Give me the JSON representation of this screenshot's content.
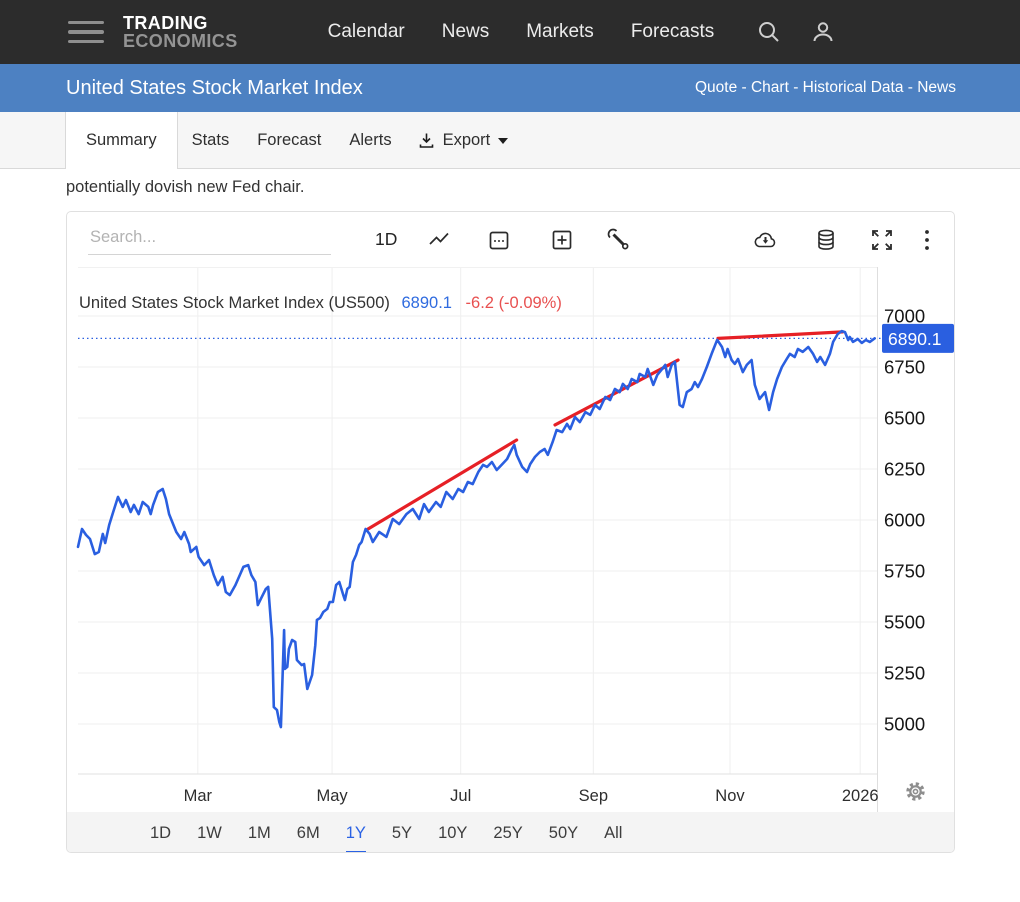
{
  "topnav": {
    "brand_line1": "TRADING",
    "brand_line2": "ECONOMICS",
    "items": [
      "Calendar",
      "News",
      "Markets",
      "Forecasts"
    ]
  },
  "subheader": {
    "title": "United States Stock Market Index",
    "links": [
      "Quote",
      "Chart",
      "Historical Data",
      "News"
    ],
    "separator": " - "
  },
  "tabs": {
    "items": [
      {
        "label": "Summary",
        "active": true
      },
      {
        "label": "Stats",
        "active": false
      },
      {
        "label": "Forecast",
        "active": false
      },
      {
        "label": "Alerts",
        "active": false
      }
    ],
    "export_label": "Export"
  },
  "snippet": "potentially dovish new Fed chair.",
  "chart_toolbar": {
    "search_placeholder": "Search...",
    "interval_label": "1D"
  },
  "icons": {
    "topnav": [
      "menu-icon",
      "search-icon",
      "user-icon"
    ],
    "tabbar": [
      "download-icon",
      "caret-down-icon"
    ],
    "toolbar": [
      "line-style-icon",
      "calendar-icon",
      "add-compare-icon",
      "tools-icon",
      "cloud-download-icon",
      "database-icon",
      "fullscreen-icon",
      "kebab-menu-icon"
    ],
    "axis": [
      "settings-gear-icon"
    ]
  },
  "colors": {
    "topnav_bg": "#2c2c2c",
    "subheader_bg": "#4d81c2",
    "line_blue": "#2a5fe0",
    "badge_blue": "#2a5fe0",
    "annotation_red": "#e62026",
    "price_blue": "#2f6bdf",
    "change_red": "#e85050",
    "grid": "#efefef",
    "active_range": "#2a62e4"
  },
  "chart_data": {
    "type": "line",
    "title": "United States Stock Market Index (US500)",
    "last_price": "6890.1",
    "change": "-6.2 (-0.09%)",
    "current_line": 6890.1,
    "ylim": [
      4755,
      7240
    ],
    "yticks": [
      7000,
      6750,
      6500,
      6250,
      6000,
      5750,
      5500,
      5250,
      5000
    ],
    "xticks": [
      {
        "pos": 0.15,
        "label": "Mar"
      },
      {
        "pos": 0.318,
        "label": "May"
      },
      {
        "pos": 0.479,
        "label": "Jul"
      },
      {
        "pos": 0.645,
        "label": "Sep"
      },
      {
        "pos": 0.816,
        "label": "Nov"
      },
      {
        "pos": 0.979,
        "label": "2026"
      }
    ],
    "grid": true,
    "legend": null,
    "series": [
      {
        "name": "US500",
        "color": "#2a5fe0",
        "points": [
          [
            0.0,
            5868
          ],
          [
            0.005,
            5956
          ],
          [
            0.01,
            5927
          ],
          [
            0.015,
            5907
          ],
          [
            0.021,
            5833
          ],
          [
            0.026,
            5843
          ],
          [
            0.031,
            5932
          ],
          [
            0.034,
            5887
          ],
          [
            0.039,
            5976
          ],
          [
            0.044,
            6039
          ],
          [
            0.05,
            6113
          ],
          [
            0.056,
            6064
          ],
          [
            0.06,
            6098
          ],
          [
            0.066,
            6039
          ],
          [
            0.07,
            6074
          ],
          [
            0.076,
            6029
          ],
          [
            0.081,
            6088
          ],
          [
            0.088,
            6064
          ],
          [
            0.091,
            6029
          ],
          [
            0.094,
            6074
          ],
          [
            0.1,
            6137
          ],
          [
            0.106,
            6152
          ],
          [
            0.11,
            6103
          ],
          [
            0.114,
            6029
          ],
          [
            0.119,
            5980
          ],
          [
            0.123,
            5941
          ],
          [
            0.129,
            5907
          ],
          [
            0.133,
            5941
          ],
          [
            0.139,
            5882
          ],
          [
            0.141,
            5843
          ],
          [
            0.148,
            5868
          ],
          [
            0.151,
            5819
          ],
          [
            0.158,
            5779
          ],
          [
            0.164,
            5804
          ],
          [
            0.17,
            5730
          ],
          [
            0.175,
            5681
          ],
          [
            0.181,
            5721
          ],
          [
            0.185,
            5647
          ],
          [
            0.19,
            5632
          ],
          [
            0.197,
            5681
          ],
          [
            0.207,
            5770
          ],
          [
            0.213,
            5779
          ],
          [
            0.217,
            5730
          ],
          [
            0.222,
            5696
          ],
          [
            0.225,
            5583
          ],
          [
            0.23,
            5623
          ],
          [
            0.235,
            5662
          ],
          [
            0.238,
            5672
          ],
          [
            0.243,
            5417
          ],
          [
            0.245,
            5083
          ],
          [
            0.249,
            5068
          ],
          [
            0.252,
            5010
          ],
          [
            0.254,
            4985
          ],
          [
            0.258,
            5461
          ],
          [
            0.259,
            5270
          ],
          [
            0.262,
            5280
          ],
          [
            0.264,
            5368
          ],
          [
            0.268,
            5412
          ],
          [
            0.272,
            5402
          ],
          [
            0.274,
            5314
          ],
          [
            0.28,
            5289
          ],
          [
            0.283,
            5294
          ],
          [
            0.287,
            5172
          ],
          [
            0.293,
            5240
          ],
          [
            0.297,
            5387
          ],
          [
            0.299,
            5510
          ],
          [
            0.303,
            5520
          ],
          [
            0.307,
            5549
          ],
          [
            0.312,
            5564
          ],
          [
            0.315,
            5598
          ],
          [
            0.319,
            5598
          ],
          [
            0.323,
            5681
          ],
          [
            0.327,
            5696
          ],
          [
            0.332,
            5632
          ],
          [
            0.334,
            5608
          ],
          [
            0.337,
            5662
          ],
          [
            0.34,
            5672
          ],
          [
            0.344,
            5794
          ],
          [
            0.348,
            5829
          ],
          [
            0.352,
            5878
          ],
          [
            0.355,
            5892
          ],
          [
            0.36,
            5956
          ],
          [
            0.365,
            5932
          ],
          [
            0.369,
            5892
          ],
          [
            0.377,
            5941
          ],
          [
            0.386,
            5917
          ],
          [
            0.394,
            6005
          ],
          [
            0.402,
            5980
          ],
          [
            0.411,
            6029
          ],
          [
            0.419,
            6054
          ],
          [
            0.427,
            6005
          ],
          [
            0.433,
            6078
          ],
          [
            0.439,
            6039
          ],
          [
            0.448,
            6088
          ],
          [
            0.454,
            6064
          ],
          [
            0.461,
            6137
          ],
          [
            0.469,
            6103
          ],
          [
            0.476,
            6152
          ],
          [
            0.482,
            6137
          ],
          [
            0.488,
            6186
          ],
          [
            0.494,
            6176
          ],
          [
            0.501,
            6235
          ],
          [
            0.507,
            6270
          ],
          [
            0.512,
            6260
          ],
          [
            0.518,
            6284
          ],
          [
            0.524,
            6245
          ],
          [
            0.531,
            6274
          ],
          [
            0.537,
            6299
          ],
          [
            0.543,
            6348
          ],
          [
            0.546,
            6368
          ],
          [
            0.549,
            6319
          ],
          [
            0.556,
            6260
          ],
          [
            0.562,
            6235
          ],
          [
            0.566,
            6274
          ],
          [
            0.572,
            6309
          ],
          [
            0.578,
            6333
          ],
          [
            0.584,
            6348
          ],
          [
            0.588,
            6319
          ],
          [
            0.594,
            6382
          ],
          [
            0.599,
            6441
          ],
          [
            0.606,
            6431
          ],
          [
            0.612,
            6471
          ],
          [
            0.616,
            6446
          ],
          [
            0.622,
            6505
          ],
          [
            0.628,
            6480
          ],
          [
            0.635,
            6529
          ],
          [
            0.641,
            6515
          ],
          [
            0.647,
            6564
          ],
          [
            0.653,
            6544
          ],
          [
            0.66,
            6603
          ],
          [
            0.666,
            6588
          ],
          [
            0.672,
            6642
          ],
          [
            0.678,
            6627
          ],
          [
            0.682,
            6667
          ],
          [
            0.688,
            6642
          ],
          [
            0.693,
            6691
          ],
          [
            0.7,
            6676
          ],
          [
            0.703,
            6716
          ],
          [
            0.71,
            6701
          ],
          [
            0.713,
            6740
          ],
          [
            0.72,
            6662
          ],
          [
            0.725,
            6711
          ],
          [
            0.731,
            6740
          ],
          [
            0.735,
            6760
          ],
          [
            0.738,
            6701
          ],
          [
            0.743,
            6760
          ],
          [
            0.747,
            6775
          ],
          [
            0.753,
            6564
          ],
          [
            0.757,
            6554
          ],
          [
            0.762,
            6627
          ],
          [
            0.768,
            6642
          ],
          [
            0.772,
            6676
          ],
          [
            0.776,
            6652
          ],
          [
            0.781,
            6691
          ],
          [
            0.787,
            6750
          ],
          [
            0.793,
            6814
          ],
          [
            0.8,
            6883
          ],
          [
            0.806,
            6848
          ],
          [
            0.81,
            6799
          ],
          [
            0.813,
            6838
          ],
          [
            0.818,
            6784
          ],
          [
            0.822,
            6765
          ],
          [
            0.826,
            6789
          ],
          [
            0.832,
            6725
          ],
          [
            0.837,
            6760
          ],
          [
            0.843,
            6784
          ],
          [
            0.847,
            6662
          ],
          [
            0.853,
            6593
          ],
          [
            0.86,
            6627
          ],
          [
            0.865,
            6539
          ],
          [
            0.87,
            6627
          ],
          [
            0.875,
            6691
          ],
          [
            0.881,
            6750
          ],
          [
            0.887,
            6789
          ],
          [
            0.891,
            6814
          ],
          [
            0.897,
            6799
          ],
          [
            0.901,
            6838
          ],
          [
            0.907,
            6824
          ],
          [
            0.914,
            6848
          ],
          [
            0.92,
            6814
          ],
          [
            0.925,
            6775
          ],
          [
            0.929,
            6799
          ],
          [
            0.935,
            6760
          ],
          [
            0.941,
            6814
          ],
          [
            0.945,
            6873
          ],
          [
            0.951,
            6912
          ],
          [
            0.956,
            6926
          ],
          [
            0.96,
            6921
          ],
          [
            0.964,
            6882
          ],
          [
            0.966,
            6897
          ],
          [
            0.97,
            6873
          ],
          [
            0.976,
            6887
          ],
          [
            0.981,
            6868
          ],
          [
            0.986,
            6882
          ],
          [
            0.991,
            6873
          ],
          [
            0.997,
            6890
          ]
        ]
      }
    ],
    "annotations": [
      {
        "type": "segment",
        "color": "#e62026",
        "from": [
          0.363,
          5956
        ],
        "to": [
          0.549,
          6392
        ]
      },
      {
        "type": "segment",
        "color": "#e62026",
        "from": [
          0.597,
          6466
        ],
        "to": [
          0.751,
          6784
        ]
      },
      {
        "type": "segment",
        "color": "#e62026",
        "from": [
          0.801,
          6890
        ],
        "to": [
          0.957,
          6922
        ]
      }
    ]
  },
  "range_selector": {
    "items": [
      "1D",
      "1W",
      "1M",
      "6M",
      "1Y",
      "5Y",
      "10Y",
      "25Y",
      "50Y",
      "All"
    ],
    "active": "1Y"
  }
}
